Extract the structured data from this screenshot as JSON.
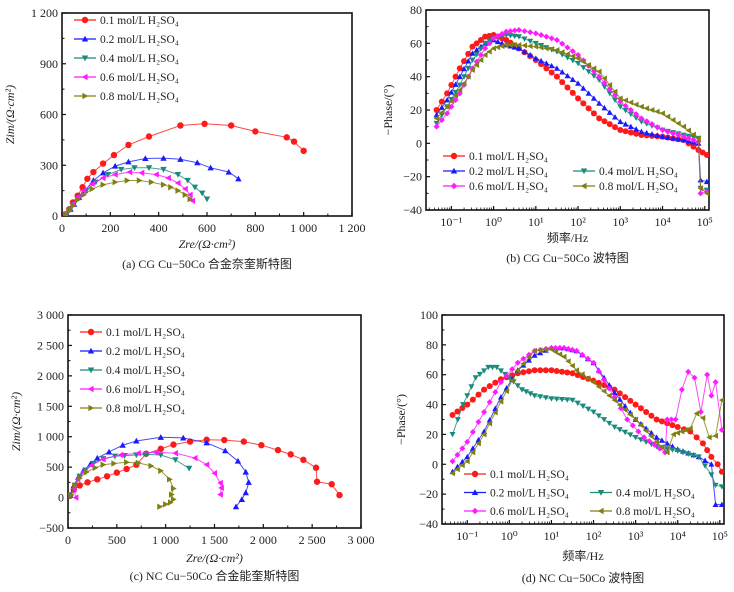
{
  "figure": {
    "panels": [
      "a",
      "b",
      "c",
      "d"
    ]
  },
  "series_styles": [
    {
      "name": "0.1 mol/L H₂SO₄",
      "color": "#ff1a1a",
      "marker": "circle"
    },
    {
      "name": "0.2 mol/L H₂SO₄",
      "color": "#1a1aff",
      "marker": "triangle-up"
    },
    {
      "name": "0.4 mol/L H₂SO₄",
      "color": "#1a8a7a",
      "marker": "triangle-down"
    },
    {
      "name": "0.6 mol/L H₂SO₄",
      "color": "#ff1aff",
      "marker": "triangle-left"
    },
    {
      "name": "0.8 mol/L H₂SO₄",
      "color": "#808010",
      "marker": "triangle-right"
    }
  ],
  "chart_data": [
    {
      "id": "a",
      "type": "scatter",
      "title": "(a) CG Cu−50Co 合金奈奎斯特图",
      "xlabel": "Zre/(Ω·cm²)",
      "ylabel": "Zim/(Ω·cm²)",
      "xlim": [
        0,
        1200
      ],
      "ylim": [
        0,
        1200
      ],
      "xticks": [
        0,
        200,
        400,
        600,
        800,
        1000,
        1200
      ],
      "xtick_labels": [
        "0",
        "200",
        "400",
        "600",
        "800",
        "1 000",
        "1 200"
      ],
      "yticks": [
        0,
        300,
        600,
        900,
        1200
      ],
      "ytick_labels": [
        "0",
        "300",
        "600",
        "900",
        "1 200"
      ],
      "legend": [
        "0.1 mol/L H₂SO₄",
        "0.2 mol/L H₂SO₄",
        "0.4 mol/L H₂SO₄",
        "0.6 mol/L H₂SO₄",
        "0.8 mol/L H₂SO₄"
      ],
      "legend_position": "top-left",
      "series": [
        {
          "name": "0.1 mol/L H₂SO₄",
          "x": [
            15,
            30,
            45,
            65,
            85,
            105,
            130,
            170,
            215,
            275,
            360,
            490,
            590,
            700,
            800,
            930,
            960,
            1000
          ],
          "y": [
            10,
            40,
            80,
            120,
            170,
            220,
            260,
            310,
            360,
            420,
            470,
            535,
            545,
            535,
            500,
            465,
            440,
            385
          ]
        },
        {
          "name": "0.2 mol/L H₂SO₄",
          "x": [
            20,
            35,
            50,
            70,
            95,
            130,
            170,
            220,
            275,
            345,
            420,
            490,
            560,
            615,
            690,
            730
          ],
          "y": [
            10,
            40,
            70,
            110,
            150,
            210,
            255,
            295,
            320,
            340,
            342,
            335,
            315,
            285,
            260,
            220
          ]
        },
        {
          "name": "0.4 mol/L H₂SO₄",
          "x": [
            20,
            35,
            50,
            70,
            100,
            140,
            190,
            245,
            300,
            360,
            420,
            480,
            520,
            550,
            580,
            600
          ],
          "y": [
            10,
            40,
            70,
            110,
            150,
            200,
            245,
            275,
            285,
            285,
            275,
            245,
            210,
            170,
            135,
            100
          ]
        },
        {
          "name": "0.6 mol/L H₂SO₄",
          "x": [
            15,
            30,
            45,
            65,
            90,
            125,
            170,
            220,
            280,
            330,
            390,
            440,
            480,
            510,
            530,
            540
          ],
          "y": [
            10,
            40,
            70,
            110,
            150,
            190,
            225,
            245,
            260,
            255,
            245,
            225,
            195,
            160,
            125,
            90
          ]
        },
        {
          "name": "0.8 mol/L H₂SO₄",
          "x": [
            15,
            30,
            45,
            65,
            90,
            125,
            170,
            220,
            270,
            320,
            370,
            420,
            450,
            480,
            510,
            530
          ],
          "y": [
            10,
            35,
            60,
            95,
            125,
            160,
            185,
            200,
            210,
            210,
            200,
            185,
            170,
            150,
            125,
            100
          ]
        }
      ]
    },
    {
      "id": "b",
      "type": "line",
      "title": "(b) CG Cu−50Co 波特图",
      "xlabel": "频率/Hz",
      "ylabel": "−Phase/(°)",
      "xscale": "log",
      "xlim_log10": [
        -1.6,
        5.1
      ],
      "ylim": [
        -40,
        80
      ],
      "xticks_log10": [
        -1,
        0,
        1,
        2,
        3,
        4,
        5
      ],
      "xtick_labels": [
        "10⁻¹",
        "10⁰",
        "10¹",
        "10²",
        "10³",
        "10⁴",
        "10⁵"
      ],
      "yticks": [
        -40,
        -20,
        0,
        20,
        40,
        60,
        80
      ],
      "ytick_labels": [
        "−40",
        "−20",
        "0",
        "20",
        "40",
        "60",
        "80"
      ],
      "legend": [
        "0.1 mol/L H₂SO₄",
        "0.2 mol/L H₂SO₄",
        "0.4 mol/L H₂SO₄",
        "0.6 mol/L H₂SO₄",
        "0.8 mol/L H₂SO₄"
      ],
      "legend_position": "bottom-left",
      "series": [
        {
          "name": "0.1 mol/L H₂SO₄",
          "logf": [
            -1.35,
            -1.1,
            -0.8,
            -0.5,
            -0.2,
            0,
            0.3,
            0.6,
            1,
            1.5,
            2,
            2.5,
            3,
            3.5,
            4,
            4.5,
            4.85,
            5.05
          ],
          "y": [
            20,
            30,
            45,
            58,
            64,
            65,
            62,
            57,
            50,
            40,
            27,
            15,
            8,
            5,
            4,
            2,
            -4,
            -7
          ]
        },
        {
          "name": "0.2 mol/L H₂SO₄",
          "logf": [
            -1.35,
            -1.1,
            -0.8,
            -0.5,
            -0.2,
            0,
            0.3,
            0.6,
            1,
            1.5,
            2,
            2.5,
            3,
            3.5,
            4,
            4.5,
            4.85,
            4.9,
            5.05
          ],
          "y": [
            17,
            26,
            40,
            54,
            60,
            62,
            59,
            57,
            51,
            45,
            36,
            24,
            13,
            7,
            4,
            2,
            0,
            -22,
            -23
          ]
        },
        {
          "name": "0.4 mol/L H₂SO₄",
          "logf": [
            -1.35,
            -1.1,
            -0.8,
            -0.5,
            -0.2,
            0,
            0.3,
            0.6,
            1,
            1.5,
            2,
            2.5,
            3,
            3.5,
            4,
            4.5,
            4.85,
            4.9,
            5.05
          ],
          "y": [
            12,
            22,
            35,
            50,
            60,
            63,
            65,
            64,
            60,
            55,
            48,
            38,
            22,
            13,
            8,
            5,
            3,
            -27,
            -28
          ]
        },
        {
          "name": "0.6 mol/L H₂SO₄",
          "logf": [
            -1.35,
            -1.1,
            -0.8,
            -0.5,
            -0.2,
            0,
            0.3,
            0.6,
            1,
            1.5,
            2,
            2.5,
            3,
            3.5,
            4,
            4.5,
            4.85,
            4.9,
            5.05
          ],
          "y": [
            10,
            18,
            30,
            45,
            57,
            63,
            67,
            68,
            66,
            62,
            53,
            40,
            25,
            15,
            8,
            4,
            1,
            -30,
            -29
          ]
        },
        {
          "name": "0.8 mol/L H₂SO₄",
          "logf": [
            -1.35,
            -1.1,
            -0.8,
            -0.5,
            -0.2,
            0,
            0.3,
            0.6,
            1,
            1.5,
            2,
            2.5,
            3,
            3.5,
            4,
            4.5,
            4.85,
            4.9,
            5.05
          ],
          "y": [
            15,
            22,
            32,
            44,
            53,
            57,
            59,
            59,
            58,
            56,
            51,
            43,
            27,
            22,
            18,
            10,
            3,
            -27,
            -30
          ]
        }
      ]
    },
    {
      "id": "c",
      "type": "scatter",
      "title": "(c) NC Cu−50Co 合金能奎斯特图",
      "xlabel": "Zre/(Ω·cm²)",
      "ylabel": "Zim/(Ω·cm²)",
      "xlim": [
        0,
        3000
      ],
      "ylim": [
        -500,
        3000
      ],
      "xticks": [
        0,
        500,
        1000,
        1500,
        2000,
        2500,
        3000
      ],
      "xtick_labels": [
        "0",
        "500",
        "1 000",
        "1 500",
        "2 000",
        "2 500",
        "3 000"
      ],
      "yticks": [
        -500,
        0,
        500,
        1000,
        1500,
        2000,
        2500,
        3000
      ],
      "ytick_labels": [
        "−500",
        "0",
        "500",
        "1 000",
        "1 500",
        "2 000",
        "2 500",
        "3 000"
      ],
      "legend": [
        "0.1 mol/L H₂SO₄",
        "0.2 mol/L H₂SO₄",
        "0.4 mol/L H₂SO₄",
        "0.6 mol/L H₂SO₄",
        "0.8 mol/L H₂SO₄"
      ],
      "legend_position": "top-left",
      "series": [
        {
          "name": "0.1 mol/L H₂SO₄",
          "x": [
            20,
            60,
            120,
            200,
            300,
            400,
            500,
            600,
            700,
            800,
            950,
            1080,
            1250,
            1420,
            1600,
            1800,
            1980,
            2150,
            2280,
            2410,
            2540,
            2550,
            2700,
            2780
          ],
          "y": [
            30,
            130,
            200,
            250,
            300,
            350,
            410,
            470,
            540,
            720,
            800,
            870,
            920,
            950,
            945,
            920,
            860,
            780,
            710,
            620,
            490,
            260,
            220,
            40
          ]
        },
        {
          "name": "0.2 mol/L H₂SO₄",
          "x": [
            20,
            60,
            110,
            160,
            230,
            300,
            420,
            560,
            700,
            950,
            1180,
            1420,
            1610,
            1740,
            1820,
            1850,
            1820,
            1780,
            1720
          ],
          "y": [
            40,
            200,
            350,
            450,
            550,
            650,
            750,
            860,
            930,
            990,
            980,
            900,
            770,
            600,
            420,
            250,
            80,
            -30,
            -150
          ]
        },
        {
          "name": "0.4 mol/L H₂SO₄",
          "x": [
            30,
            70,
            120,
            180,
            260,
            360,
            480,
            580,
            700,
            800,
            950,
            1100,
            1240
          ],
          "y": [
            20,
            200,
            350,
            450,
            560,
            640,
            680,
            690,
            700,
            710,
            700,
            620,
            480
          ]
        },
        {
          "name": "0.6 mol/L H₂SO₄",
          "x": [
            80,
            60,
            100,
            160,
            240,
            360,
            540,
            720,
            900,
            1100,
            1300,
            1420,
            1500,
            1560,
            1570,
            1560
          ],
          "y": [
            0,
            150,
            300,
            420,
            530,
            630,
            700,
            730,
            740,
            730,
            650,
            540,
            400,
            240,
            160,
            50
          ]
        },
        {
          "name": "0.8 mol/L H₂SO₄",
          "x": [
            30,
            70,
            120,
            190,
            280,
            360,
            470,
            600,
            720,
            850,
            950,
            1040,
            1080,
            1060,
            1080,
            1050,
            1000,
            940
          ],
          "y": [
            40,
            200,
            320,
            420,
            490,
            540,
            560,
            580,
            570,
            520,
            440,
            300,
            150,
            50,
            -30,
            -80,
            -110,
            -150
          ]
        }
      ]
    },
    {
      "id": "d",
      "type": "line",
      "title": "(d) NC Cu−50Co 波特图",
      "xlabel": "频率/Hz",
      "ylabel": "−Phase/(°)",
      "xscale": "log",
      "xlim_log10": [
        -1.6,
        5.1
      ],
      "ylim": [
        -40,
        100
      ],
      "xticks_log10": [
        -1,
        0,
        1,
        2,
        3,
        4,
        5
      ],
      "xtick_labels": [
        "10⁻¹",
        "10⁰",
        "10¹",
        "10²",
        "10³",
        "10⁴",
        "10⁵"
      ],
      "yticks": [
        -40,
        -20,
        0,
        20,
        40,
        60,
        80,
        100
      ],
      "ytick_labels": [
        "−40",
        "−20",
        "0",
        "20",
        "40",
        "60",
        "80",
        "100"
      ],
      "legend": [
        "0.1 mol/L H₂SO₄",
        "0.2 mol/L H₂SO₄",
        "0.4 mol/L H₂SO₄",
        "0.6 mol/L H₂SO₄",
        "0.8 mol/L H₂SO₄"
      ],
      "legend_position": "bottom-left",
      "series": [
        {
          "name": "0.1 mol/L H₂SO₄",
          "logf": [
            -1.35,
            -1.0,
            -0.6,
            -0.2,
            0.2,
            0.6,
            1,
            1.5,
            2,
            2.5,
            3,
            3.5,
            4,
            4.3,
            4.6,
            4.8,
            4.95,
            5.05
          ],
          "y": [
            33,
            40,
            50,
            57,
            61,
            63,
            63,
            61,
            56,
            50,
            40,
            30,
            25,
            22,
            14,
            5,
            0,
            -5
          ]
        },
        {
          "name": "0.2 mol/L H₂SO₄",
          "logf": [
            -1.35,
            -1.0,
            -0.6,
            -0.2,
            0.2,
            0.6,
            1,
            1.3,
            1.6,
            2,
            2.5,
            3,
            3.5,
            4,
            4.5,
            4.8,
            4.9,
            5.05
          ],
          "y": [
            -5,
            5,
            22,
            45,
            63,
            73,
            78,
            78,
            76,
            68,
            48,
            30,
            18,
            10,
            5,
            0,
            -27,
            -27
          ]
        },
        {
          "name": "0.4 mol/L H₂SO₄",
          "logf": [
            -1.35,
            -1.1,
            -0.8,
            -0.5,
            -0.3,
            0,
            0.3,
            0.6,
            1,
            1.5,
            2,
            2.5,
            3,
            3.5,
            4,
            4.5,
            4.8,
            4.9,
            5.05
          ],
          "y": [
            20,
            40,
            58,
            65,
            65,
            58,
            50,
            46,
            44,
            43,
            35,
            25,
            18,
            12,
            9,
            5,
            -7,
            -14,
            -15
          ]
        },
        {
          "name": "0.6 mol/L H₂SO₄",
          "logf": [
            -1.35,
            -1.0,
            -0.6,
            -0.2,
            0.2,
            0.6,
            1,
            1.3,
            1.6,
            2,
            2.5,
            2.8,
            3.2,
            3.7,
            3.75,
            3.95,
            4.1,
            4.25,
            4.4,
            4.55,
            4.7,
            4.8,
            4.9,
            5.05
          ],
          "y": [
            2,
            15,
            35,
            55,
            68,
            76,
            78,
            78,
            76,
            68,
            45,
            30,
            18,
            8,
            30,
            30,
            50,
            62,
            58,
            35,
            60,
            46,
            55,
            23
          ]
        },
        {
          "name": "0.8 mol/L H₂SO₄",
          "logf": [
            -1.35,
            -1.0,
            -0.6,
            -0.2,
            0.2,
            0.6,
            1,
            1.3,
            1.6,
            2,
            2.5,
            3,
            3.5,
            3.75,
            3.9,
            4.1,
            4.3,
            4.45,
            4.6,
            4.75,
            4.9,
            5.05
          ],
          "y": [
            -6,
            2,
            20,
            42,
            63,
            76,
            77,
            72,
            63,
            55,
            43,
            30,
            15,
            8,
            20,
            22,
            24,
            34,
            31,
            18,
            19,
            43
          ]
        }
      ]
    }
  ]
}
